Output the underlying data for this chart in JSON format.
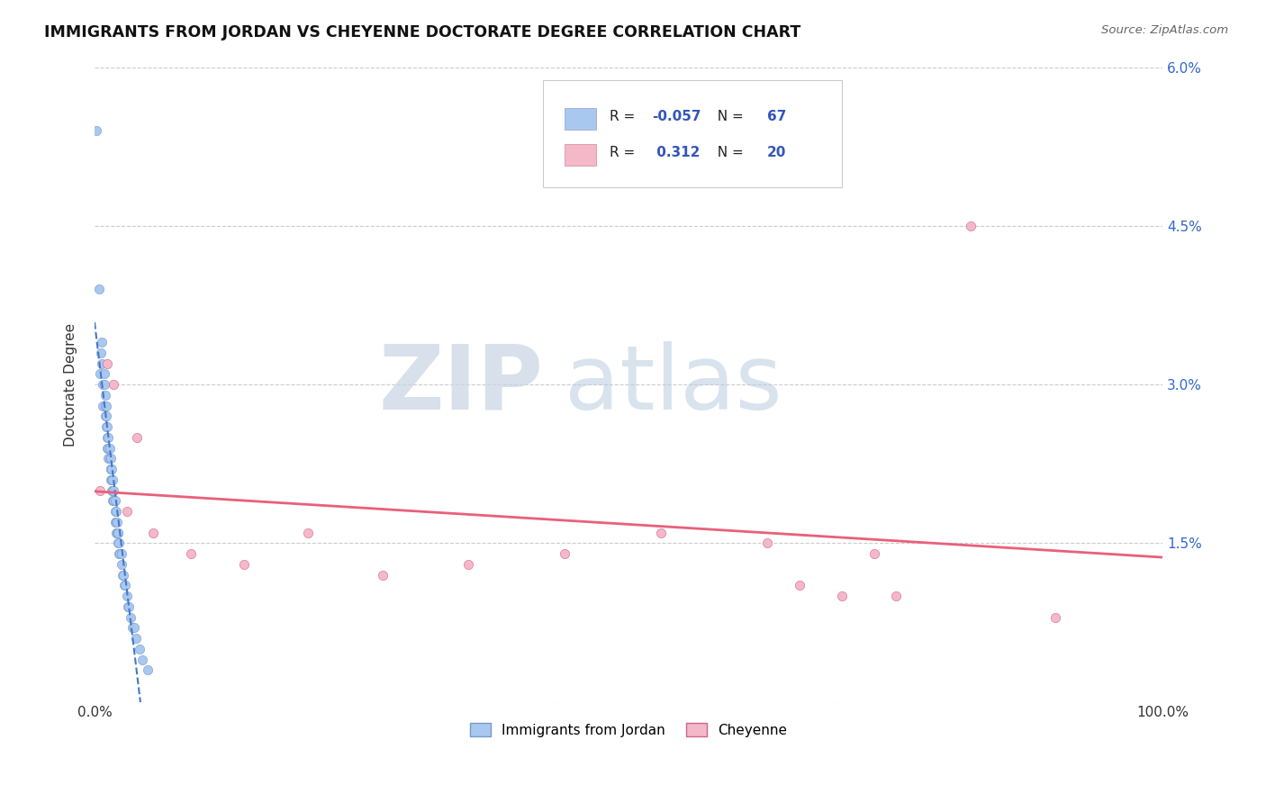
{
  "title": "IMMIGRANTS FROM JORDAN VS CHEYENNE DOCTORATE DEGREE CORRELATION CHART",
  "source_text": "Source: ZipAtlas.com",
  "ylabel": "Doctorate Degree",
  "xlim": [
    0.0,
    1.0
  ],
  "ylim": [
    0.0,
    0.06
  ],
  "yticks": [
    0.0,
    0.015,
    0.03,
    0.045,
    0.06
  ],
  "ytick_labels": [
    "",
    "1.5%",
    "3.0%",
    "4.5%",
    "6.0%"
  ],
  "xticks": [
    0.0,
    1.0
  ],
  "xtick_labels": [
    "0.0%",
    "100.0%"
  ],
  "legend_labels": [
    "Immigrants from Jordan",
    "Cheyenne"
  ],
  "r_jordan": -0.057,
  "n_jordan": 67,
  "r_cheyenne": 0.312,
  "n_cheyenne": 20,
  "blue_color": "#a8c8f0",
  "pink_color": "#f5b8c8",
  "blue_line_color": "#4477cc",
  "pink_line_color": "#e8607a",
  "watermark_zip": "ZIP",
  "watermark_atlas": "atlas",
  "background_color": "#ffffff",
  "grid_color": "#cccccc",
  "jordan_x": [
    0.002,
    0.004,
    0.005,
    0.006,
    0.007,
    0.007,
    0.008,
    0.008,
    0.009,
    0.009,
    0.01,
    0.01,
    0.01,
    0.011,
    0.011,
    0.011,
    0.012,
    0.012,
    0.012,
    0.013,
    0.013,
    0.013,
    0.014,
    0.014,
    0.015,
    0.015,
    0.015,
    0.015,
    0.016,
    0.016,
    0.016,
    0.017,
    0.017,
    0.017,
    0.018,
    0.018,
    0.018,
    0.019,
    0.019,
    0.019,
    0.02,
    0.02,
    0.02,
    0.021,
    0.021,
    0.022,
    0.022,
    0.022,
    0.023,
    0.023,
    0.024,
    0.025,
    0.025,
    0.026,
    0.027,
    0.028,
    0.029,
    0.03,
    0.031,
    0.032,
    0.034,
    0.035,
    0.037,
    0.039,
    0.042,
    0.045,
    0.05
  ],
  "jordan_y": [
    0.054,
    0.039,
    0.031,
    0.033,
    0.032,
    0.034,
    0.03,
    0.028,
    0.03,
    0.031,
    0.028,
    0.029,
    0.027,
    0.027,
    0.028,
    0.026,
    0.026,
    0.025,
    0.024,
    0.024,
    0.025,
    0.023,
    0.023,
    0.024,
    0.022,
    0.022,
    0.023,
    0.021,
    0.021,
    0.022,
    0.02,
    0.02,
    0.021,
    0.019,
    0.019,
    0.02,
    0.019,
    0.018,
    0.019,
    0.017,
    0.017,
    0.018,
    0.016,
    0.016,
    0.017,
    0.016,
    0.015,
    0.016,
    0.015,
    0.014,
    0.014,
    0.013,
    0.014,
    0.012,
    0.012,
    0.011,
    0.011,
    0.01,
    0.009,
    0.009,
    0.008,
    0.007,
    0.007,
    0.006,
    0.005,
    0.004,
    0.003
  ],
  "cheyenne_x": [
    0.005,
    0.012,
    0.018,
    0.03,
    0.04,
    0.055,
    0.09,
    0.14,
    0.2,
    0.27,
    0.35,
    0.44,
    0.53,
    0.63,
    0.73,
    0.82,
    0.66,
    0.7,
    0.75,
    0.9
  ],
  "cheyenne_y": [
    0.02,
    0.032,
    0.03,
    0.018,
    0.025,
    0.016,
    0.014,
    0.013,
    0.016,
    0.012,
    0.013,
    0.014,
    0.016,
    0.015,
    0.014,
    0.045,
    0.011,
    0.01,
    0.01,
    0.008
  ]
}
